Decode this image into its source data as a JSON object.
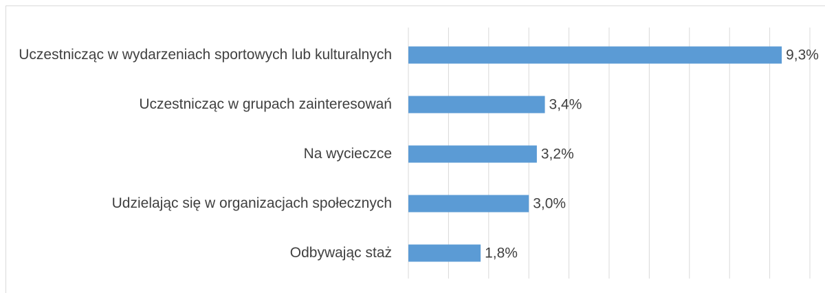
{
  "chart_data": {
    "type": "bar",
    "orientation": "horizontal",
    "categories": [
      "Uczestnicząc w wydarzeniach sportowych lub kulturalnych",
      "Uczestnicząc w grupach zainteresowań",
      "Na wycieczce",
      "Udzielając się w organizacjach społecznych",
      "Odbywając staż"
    ],
    "values": [
      9.3,
      3.4,
      3.2,
      3.0,
      1.8
    ],
    "value_labels": [
      "9,3%",
      "3,4%",
      "3,2%",
      "3,0%",
      "1,8%"
    ],
    "color": "#5b9bd5",
    "xlim": [
      0,
      10
    ],
    "xticks": [
      0,
      1,
      2,
      3,
      4,
      5,
      6,
      7,
      8,
      9,
      10
    ],
    "xtick_labels": false,
    "grid": true
  }
}
